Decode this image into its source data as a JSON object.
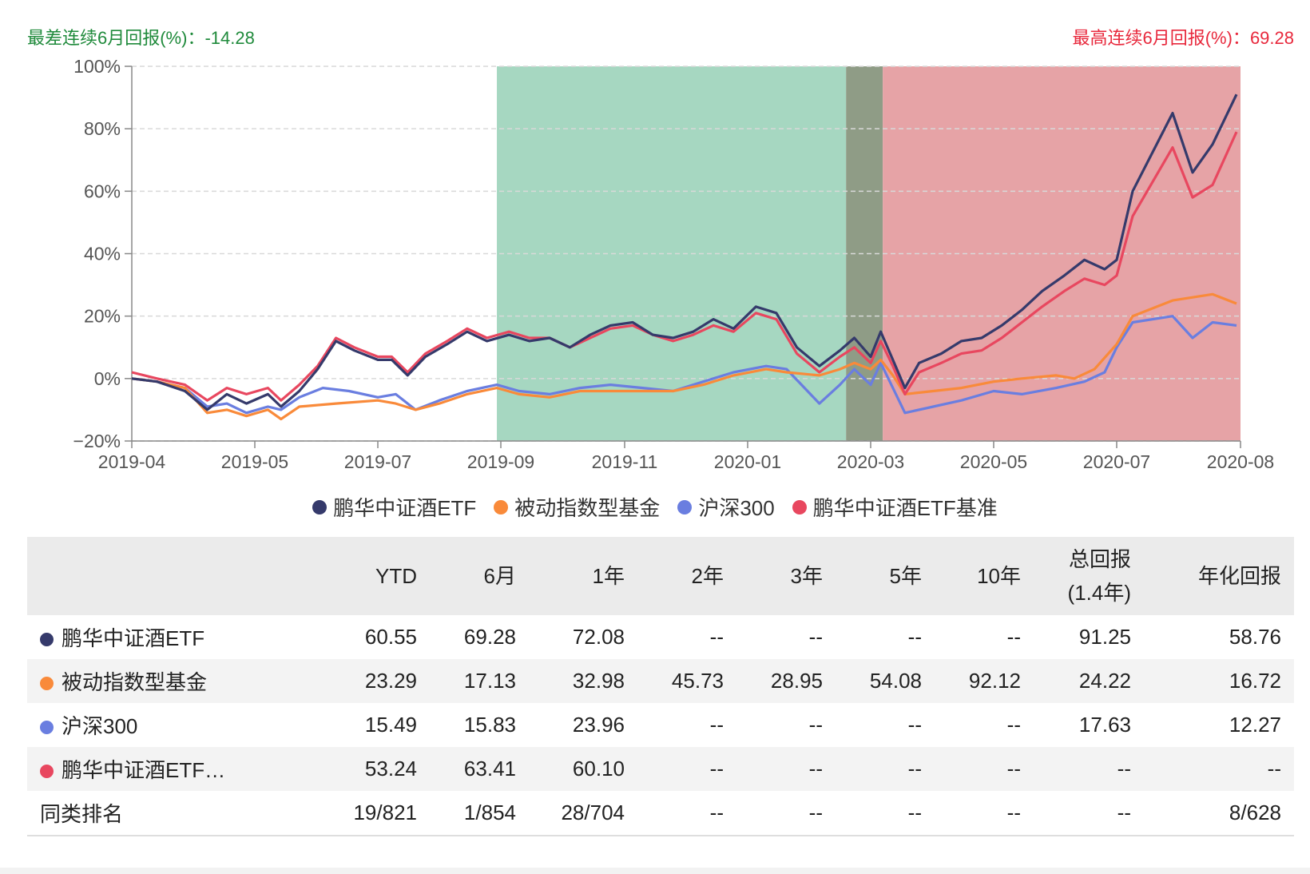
{
  "header": {
    "worst_label": "最差连续6月回报(%)：",
    "worst_value": "-14.28",
    "best_label": "最高连续6月回报(%)：",
    "best_value": "69.28"
  },
  "chart_data": {
    "type": "line",
    "title": "",
    "xlabel": "",
    "ylabel": "",
    "x_ticks": [
      "2019-04",
      "2019-05",
      "2019-07",
      "2019-09",
      "2019-11",
      "2020-01",
      "2020-03",
      "2020-05",
      "2020-07",
      "2020-08"
    ],
    "y_ticks": [
      "100%",
      "80%",
      "60%",
      "40%",
      "20%",
      "0%",
      "-20%"
    ],
    "ylim": [
      -20,
      100
    ],
    "x_range": [
      "2019-04-01",
      "2020-08-01"
    ],
    "grid": "horizontal dashed",
    "shaded_ranges": [
      {
        "start": "2019-08-30",
        "end": "2020-02-18",
        "color": "#a6d7c1",
        "meaning": "worst"
      },
      {
        "start": "2020-02-18",
        "end": "2020-03-07",
        "color": "#8f9c86",
        "meaning": "overlap"
      },
      {
        "start": "2020-03-07",
        "end": "2020-08-01",
        "color": "#e6a3a6",
        "meaning": "best"
      }
    ],
    "series": [
      {
        "name": "鹏华中证酒ETF",
        "color": "#353a6b",
        "points": [
          [
            "2019-04-01",
            0
          ],
          [
            "2019-04-10",
            -1
          ],
          [
            "2019-04-20",
            -4
          ],
          [
            "2019-04-28",
            -10
          ],
          [
            "2019-05-05",
            -5
          ],
          [
            "2019-05-12",
            -8
          ],
          [
            "2019-05-20",
            -5
          ],
          [
            "2019-05-25",
            -9
          ],
          [
            "2019-06-01",
            -4
          ],
          [
            "2019-06-08",
            3
          ],
          [
            "2019-06-15",
            12
          ],
          [
            "2019-06-22",
            9
          ],
          [
            "2019-07-01",
            6
          ],
          [
            "2019-07-08",
            6
          ],
          [
            "2019-07-16",
            1
          ],
          [
            "2019-07-25",
            7
          ],
          [
            "2019-08-05",
            11
          ],
          [
            "2019-08-15",
            15
          ],
          [
            "2019-08-25",
            12
          ],
          [
            "2019-09-05",
            14
          ],
          [
            "2019-09-15",
            12
          ],
          [
            "2019-09-25",
            13
          ],
          [
            "2019-10-05",
            10
          ],
          [
            "2019-10-15",
            14
          ],
          [
            "2019-10-25",
            17
          ],
          [
            "2019-11-05",
            18
          ],
          [
            "2019-11-15",
            14
          ],
          [
            "2019-11-25",
            13
          ],
          [
            "2019-12-05",
            15
          ],
          [
            "2019-12-15",
            19
          ],
          [
            "2019-12-25",
            16
          ],
          [
            "2020-01-05",
            23
          ],
          [
            "2020-01-15",
            21
          ],
          [
            "2020-01-25",
            10
          ],
          [
            "2020-02-05",
            4
          ],
          [
            "2020-02-15",
            9
          ],
          [
            "2020-02-22",
            13
          ],
          [
            "2020-03-01",
            7
          ],
          [
            "2020-03-06",
            15
          ],
          [
            "2020-03-12",
            6
          ],
          [
            "2020-03-18",
            -3
          ],
          [
            "2020-03-25",
            5
          ],
          [
            "2020-04-05",
            8
          ],
          [
            "2020-04-15",
            12
          ],
          [
            "2020-04-25",
            13
          ],
          [
            "2020-05-05",
            17
          ],
          [
            "2020-05-15",
            22
          ],
          [
            "2020-05-25",
            28
          ],
          [
            "2020-06-05",
            33
          ],
          [
            "2020-06-15",
            38
          ],
          [
            "2020-06-25",
            35
          ],
          [
            "2020-07-01",
            38
          ],
          [
            "2020-07-05",
            60
          ],
          [
            "2020-07-15",
            85
          ],
          [
            "2020-07-20",
            66
          ],
          [
            "2020-07-25",
            75
          ],
          [
            "2020-07-31",
            91
          ]
        ]
      },
      {
        "name": "被动指数型基金",
        "color": "#f98a3a",
        "points": [
          [
            "2019-04-01",
            0
          ],
          [
            "2019-04-10",
            -1
          ],
          [
            "2019-04-20",
            -3
          ],
          [
            "2019-04-28",
            -11
          ],
          [
            "2019-05-05",
            -10
          ],
          [
            "2019-05-12",
            -12
          ],
          [
            "2019-05-20",
            -10
          ],
          [
            "2019-05-25",
            -13
          ],
          [
            "2019-06-01",
            -9
          ],
          [
            "2019-06-15",
            -8
          ],
          [
            "2019-07-01",
            -7
          ],
          [
            "2019-07-10",
            -8
          ],
          [
            "2019-07-20",
            -10
          ],
          [
            "2019-08-01",
            -8
          ],
          [
            "2019-08-15",
            -5
          ],
          [
            "2019-08-30",
            -3
          ],
          [
            "2019-09-10",
            -5
          ],
          [
            "2019-09-25",
            -6
          ],
          [
            "2019-10-10",
            -4
          ],
          [
            "2019-10-25",
            -4
          ],
          [
            "2019-11-10",
            -4
          ],
          [
            "2019-11-25",
            -4
          ],
          [
            "2019-12-10",
            -2
          ],
          [
            "2019-12-25",
            1
          ],
          [
            "2020-01-10",
            3
          ],
          [
            "2020-01-20",
            2
          ],
          [
            "2020-02-05",
            1
          ],
          [
            "2020-02-15",
            3
          ],
          [
            "2020-02-22",
            5
          ],
          [
            "2020-03-01",
            3
          ],
          [
            "2020-03-06",
            6
          ],
          [
            "2020-03-12",
            1
          ],
          [
            "2020-03-18",
            -5
          ],
          [
            "2020-04-01",
            -4
          ],
          [
            "2020-04-15",
            -3
          ],
          [
            "2020-05-01",
            -1
          ],
          [
            "2020-05-15",
            0
          ],
          [
            "2020-06-01",
            1
          ],
          [
            "2020-06-10",
            0
          ],
          [
            "2020-06-20",
            3
          ],
          [
            "2020-07-01",
            11
          ],
          [
            "2020-07-05",
            20
          ],
          [
            "2020-07-15",
            25
          ],
          [
            "2020-07-25",
            27
          ],
          [
            "2020-07-31",
            24
          ]
        ]
      },
      {
        "name": "沪深300",
        "color": "#6a7ee0",
        "points": [
          [
            "2019-04-01",
            0
          ],
          [
            "2019-04-10",
            -1
          ],
          [
            "2019-04-20",
            -3
          ],
          [
            "2019-04-28",
            -9
          ],
          [
            "2019-05-05",
            -8
          ],
          [
            "2019-05-12",
            -11
          ],
          [
            "2019-05-20",
            -9
          ],
          [
            "2019-05-25",
            -10
          ],
          [
            "2019-06-01",
            -6
          ],
          [
            "2019-06-10",
            -3
          ],
          [
            "2019-06-20",
            -4
          ],
          [
            "2019-07-01",
            -6
          ],
          [
            "2019-07-10",
            -5
          ],
          [
            "2019-07-20",
            -10
          ],
          [
            "2019-08-01",
            -7
          ],
          [
            "2019-08-15",
            -4
          ],
          [
            "2019-08-30",
            -2
          ],
          [
            "2019-09-10",
            -4
          ],
          [
            "2019-09-25",
            -5
          ],
          [
            "2019-10-10",
            -3
          ],
          [
            "2019-10-25",
            -2
          ],
          [
            "2019-11-10",
            -3
          ],
          [
            "2019-11-25",
            -4
          ],
          [
            "2019-12-10",
            -1
          ],
          [
            "2019-12-25",
            2
          ],
          [
            "2020-01-10",
            4
          ],
          [
            "2020-01-20",
            3
          ],
          [
            "2020-02-05",
            -8
          ],
          [
            "2020-02-15",
            -2
          ],
          [
            "2020-02-22",
            3
          ],
          [
            "2020-03-01",
            -2
          ],
          [
            "2020-03-06",
            5
          ],
          [
            "2020-03-12",
            -3
          ],
          [
            "2020-03-18",
            -11
          ],
          [
            "2020-04-01",
            -9
          ],
          [
            "2020-04-15",
            -7
          ],
          [
            "2020-05-01",
            -4
          ],
          [
            "2020-05-15",
            -5
          ],
          [
            "2020-06-01",
            -3
          ],
          [
            "2020-06-15",
            -1
          ],
          [
            "2020-06-25",
            2
          ],
          [
            "2020-07-01",
            10
          ],
          [
            "2020-07-05",
            18
          ],
          [
            "2020-07-15",
            20
          ],
          [
            "2020-07-20",
            13
          ],
          [
            "2020-07-25",
            18
          ],
          [
            "2020-07-31",
            17
          ]
        ]
      },
      {
        "name": "鹏华中证酒ETF基准",
        "color": "#e8475f",
        "points": [
          [
            "2019-04-01",
            2
          ],
          [
            "2019-04-10",
            0
          ],
          [
            "2019-04-20",
            -2
          ],
          [
            "2019-04-28",
            -7
          ],
          [
            "2019-05-05",
            -3
          ],
          [
            "2019-05-12",
            -5
          ],
          [
            "2019-05-20",
            -3
          ],
          [
            "2019-05-25",
            -7
          ],
          [
            "2019-06-01",
            -2
          ],
          [
            "2019-06-08",
            4
          ],
          [
            "2019-06-15",
            13
          ],
          [
            "2019-06-22",
            10
          ],
          [
            "2019-07-01",
            7
          ],
          [
            "2019-07-08",
            7
          ],
          [
            "2019-07-16",
            2
          ],
          [
            "2019-07-25",
            8
          ],
          [
            "2019-08-05",
            12
          ],
          [
            "2019-08-15",
            16
          ],
          [
            "2019-08-25",
            13
          ],
          [
            "2019-09-05",
            15
          ],
          [
            "2019-09-15",
            13
          ],
          [
            "2019-09-25",
            13
          ],
          [
            "2019-10-05",
            10
          ],
          [
            "2019-10-15",
            13
          ],
          [
            "2019-10-25",
            16
          ],
          [
            "2019-11-05",
            17
          ],
          [
            "2019-11-15",
            14
          ],
          [
            "2019-11-25",
            12
          ],
          [
            "2019-12-05",
            14
          ],
          [
            "2019-12-15",
            17
          ],
          [
            "2019-12-25",
            15
          ],
          [
            "2020-01-05",
            21
          ],
          [
            "2020-01-15",
            19
          ],
          [
            "2020-01-25",
            8
          ],
          [
            "2020-02-05",
            2
          ],
          [
            "2020-02-15",
            7
          ],
          [
            "2020-02-22",
            10
          ],
          [
            "2020-03-01",
            5
          ],
          [
            "2020-03-06",
            12
          ],
          [
            "2020-03-12",
            4
          ],
          [
            "2020-03-18",
            -5
          ],
          [
            "2020-03-25",
            2
          ],
          [
            "2020-04-05",
            5
          ],
          [
            "2020-04-15",
            8
          ],
          [
            "2020-04-25",
            9
          ],
          [
            "2020-05-05",
            13
          ],
          [
            "2020-05-15",
            18
          ],
          [
            "2020-05-25",
            23
          ],
          [
            "2020-06-05",
            28
          ],
          [
            "2020-06-15",
            32
          ],
          [
            "2020-06-25",
            30
          ],
          [
            "2020-07-01",
            33
          ],
          [
            "2020-07-05",
            52
          ],
          [
            "2020-07-15",
            74
          ],
          [
            "2020-07-20",
            58
          ],
          [
            "2020-07-25",
            62
          ],
          [
            "2020-07-31",
            79
          ]
        ]
      }
    ]
  },
  "legend": [
    {
      "label": "鹏华中证酒ETF",
      "color": "#353a6b"
    },
    {
      "label": "被动指数型基金",
      "color": "#f98a3a"
    },
    {
      "label": "沪深300",
      "color": "#6a7ee0"
    },
    {
      "label": "鹏华中证酒ETF基准",
      "color": "#e8475f"
    }
  ],
  "table": {
    "headers": {
      "c1": "YTD",
      "c2": "6月",
      "c3": "1年",
      "c4": "2年",
      "c5": "3年",
      "c6": "5年",
      "c7": "10年",
      "c8a": "总回报",
      "c8b": "(1.4年)",
      "c9": "年化回报"
    },
    "rows": [
      {
        "name": "鹏华中证酒ETF",
        "color": "#353a6b",
        "values": [
          "60.55",
          "69.28",
          "72.08",
          "--",
          "--",
          "--",
          "--",
          "91.25",
          "58.76"
        ]
      },
      {
        "name": "被动指数型基金",
        "color": "#f98a3a",
        "values": [
          "23.29",
          "17.13",
          "32.98",
          "45.73",
          "28.95",
          "54.08",
          "92.12",
          "24.22",
          "16.72"
        ]
      },
      {
        "name": "沪深300",
        "color": "#6a7ee0",
        "values": [
          "15.49",
          "15.83",
          "23.96",
          "--",
          "--",
          "--",
          "--",
          "17.63",
          "12.27"
        ]
      },
      {
        "name": "鹏华中证酒ETF…",
        "color": "#e8475f",
        "values": [
          "53.24",
          "63.41",
          "60.10",
          "--",
          "--",
          "--",
          "--",
          "--",
          "--"
        ]
      },
      {
        "name": "同类排名",
        "values": [
          "19/821",
          "1/854",
          "28/704",
          "--",
          "--",
          "--",
          "--",
          "--",
          "8/628"
        ]
      }
    ]
  }
}
